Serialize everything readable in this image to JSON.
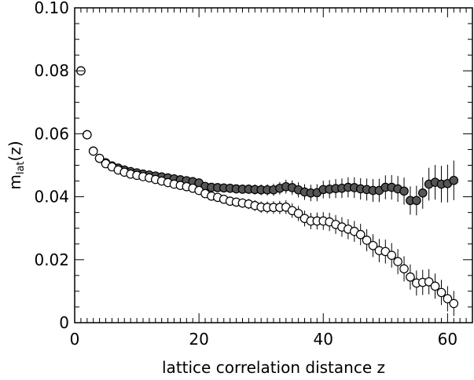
{
  "chart_data": {
    "type": "scatter",
    "xlabel": "lattice correlation distance z",
    "ylabel": {
      "main": "m",
      "sub": "lat",
      "suffix": "(z)"
    },
    "xlim": [
      0,
      64
    ],
    "ylim": [
      0,
      0.1
    ],
    "xticks": [
      0,
      20,
      40,
      60
    ],
    "xtick_labels": [
      "0",
      "20",
      "40",
      "60"
    ],
    "yticks": [
      0,
      0.02,
      0.04,
      0.06,
      0.08,
      0.1
    ],
    "ytick_labels": [
      "0",
      "0.02",
      "0.04",
      "0.06",
      "0.08",
      "0.10"
    ],
    "grid": false,
    "colors": {
      "filled": "#555555",
      "open": "#ffffff",
      "stroke": "#000000"
    },
    "series": [
      {
        "marker": "filled-circle",
        "points": [
          [
            1,
            0.08,
            0.0003
          ],
          [
            2,
            0.0597,
            0.0003
          ],
          [
            3,
            0.0545,
            0.0003
          ],
          [
            4,
            0.0522,
            0.0004
          ],
          [
            5,
            0.0508,
            0.0004
          ],
          [
            6,
            0.0498,
            0.0004
          ],
          [
            7,
            0.0491,
            0.0004
          ],
          [
            8,
            0.0485,
            0.0004
          ],
          [
            9,
            0.048,
            0.0005
          ],
          [
            10,
            0.0476,
            0.0005
          ],
          [
            11,
            0.0472,
            0.0005
          ],
          [
            12,
            0.0469,
            0.0005
          ],
          [
            13,
            0.0466,
            0.0005
          ],
          [
            14,
            0.0463,
            0.0005
          ],
          [
            15,
            0.046,
            0.0006
          ],
          [
            16,
            0.0457,
            0.0006
          ],
          [
            17,
            0.0454,
            0.0006
          ],
          [
            18,
            0.0451,
            0.0006
          ],
          [
            19,
            0.0448,
            0.0007
          ],
          [
            20,
            0.0444,
            0.0007
          ],
          [
            21,
            0.0433,
            0.0008
          ],
          [
            22,
            0.043,
            0.0009
          ],
          [
            23,
            0.0429,
            0.001
          ],
          [
            24,
            0.0428,
            0.0011
          ],
          [
            25,
            0.0427,
            0.0012
          ],
          [
            26,
            0.0425,
            0.0013
          ],
          [
            27,
            0.0424,
            0.0014
          ],
          [
            28,
            0.0424,
            0.0015
          ],
          [
            29,
            0.0423,
            0.0016
          ],
          [
            30,
            0.0422,
            0.0017
          ],
          [
            31,
            0.0422,
            0.0018
          ],
          [
            32,
            0.0422,
            0.0019
          ],
          [
            33,
            0.0427,
            0.002
          ],
          [
            34,
            0.0432,
            0.0022
          ],
          [
            35,
            0.0429,
            0.0023
          ],
          [
            36,
            0.0422,
            0.0024
          ],
          [
            37,
            0.0415,
            0.0025
          ],
          [
            38,
            0.0412,
            0.0026
          ],
          [
            39,
            0.0413,
            0.0027
          ],
          [
            40,
            0.0423,
            0.0028
          ],
          [
            41,
            0.0424,
            0.0029
          ],
          [
            42,
            0.0426,
            0.003
          ],
          [
            43,
            0.0427,
            0.0031
          ],
          [
            44,
            0.043,
            0.0032
          ],
          [
            45,
            0.0429,
            0.0033
          ],
          [
            46,
            0.0425,
            0.0034
          ],
          [
            47,
            0.0423,
            0.0035
          ],
          [
            48,
            0.042,
            0.0036
          ],
          [
            49,
            0.042,
            0.0037
          ],
          [
            50,
            0.043,
            0.0038
          ],
          [
            51,
            0.043,
            0.0039
          ],
          [
            52,
            0.0425,
            0.0041
          ],
          [
            53,
            0.0418,
            0.0043
          ],
          [
            54,
            0.0388,
            0.0045
          ],
          [
            55,
            0.0388,
            0.0047
          ],
          [
            56,
            0.0412,
            0.005
          ],
          [
            57,
            0.044,
            0.0052
          ],
          [
            58,
            0.0446,
            0.0055
          ],
          [
            59,
            0.044,
            0.0058
          ],
          [
            60,
            0.0442,
            0.006
          ],
          [
            61,
            0.0452,
            0.0063
          ]
        ]
      },
      {
        "marker": "open-circle",
        "points": [
          [
            1,
            0.08,
            0.0003
          ],
          [
            2,
            0.0597,
            0.0003
          ],
          [
            3,
            0.0545,
            0.0003
          ],
          [
            4,
            0.0522,
            0.0004
          ],
          [
            5,
            0.0505,
            0.0004
          ],
          [
            6,
            0.0495,
            0.0004
          ],
          [
            7,
            0.0485,
            0.0004
          ],
          [
            8,
            0.0478,
            0.0004
          ],
          [
            9,
            0.0472,
            0.0005
          ],
          [
            10,
            0.0468,
            0.0005
          ],
          [
            11,
            0.0464,
            0.0005
          ],
          [
            12,
            0.046,
            0.0005
          ],
          [
            13,
            0.0455,
            0.0005
          ],
          [
            14,
            0.045,
            0.0005
          ],
          [
            15,
            0.0445,
            0.0006
          ],
          [
            16,
            0.044,
            0.0006
          ],
          [
            17,
            0.0436,
            0.0006
          ],
          [
            18,
            0.0432,
            0.0007
          ],
          [
            19,
            0.0427,
            0.0007
          ],
          [
            20,
            0.042,
            0.0008
          ],
          [
            21,
            0.041,
            0.0009
          ],
          [
            22,
            0.0402,
            0.001
          ],
          [
            23,
            0.0398,
            0.0011
          ],
          [
            24,
            0.0392,
            0.0012
          ],
          [
            25,
            0.0386,
            0.0013
          ],
          [
            26,
            0.0383,
            0.0014
          ],
          [
            27,
            0.038,
            0.0015
          ],
          [
            28,
            0.0377,
            0.0016
          ],
          [
            29,
            0.0372,
            0.0017
          ],
          [
            30,
            0.0367,
            0.0018
          ],
          [
            31,
            0.0366,
            0.0019
          ],
          [
            32,
            0.0366,
            0.002
          ],
          [
            33,
            0.0366,
            0.0021
          ],
          [
            34,
            0.0367,
            0.0022
          ],
          [
            35,
            0.0356,
            0.0023
          ],
          [
            36,
            0.0347,
            0.0024
          ],
          [
            37,
            0.0331,
            0.0025
          ],
          [
            38,
            0.0323,
            0.0026
          ],
          [
            39,
            0.0323,
            0.0027
          ],
          [
            40,
            0.0323,
            0.0028
          ],
          [
            41,
            0.032,
            0.0029
          ],
          [
            42,
            0.0312,
            0.003
          ],
          [
            43,
            0.0304,
            0.0031
          ],
          [
            44,
            0.0297,
            0.0032
          ],
          [
            45,
            0.029,
            0.0033
          ],
          [
            46,
            0.028,
            0.0034
          ],
          [
            47,
            0.0262,
            0.0035
          ],
          [
            48,
            0.0245,
            0.0036
          ],
          [
            49,
            0.0229,
            0.0037
          ],
          [
            50,
            0.0226,
            0.0038
          ],
          [
            51,
            0.0214,
            0.0039
          ],
          [
            52,
            0.0194,
            0.004
          ],
          [
            53,
            0.0171,
            0.004
          ],
          [
            54,
            0.0145,
            0.004
          ],
          [
            55,
            0.0126,
            0.004
          ],
          [
            56,
            0.0128,
            0.004
          ],
          [
            57,
            0.013,
            0.004
          ],
          [
            58,
            0.0116,
            0.004
          ],
          [
            59,
            0.0096,
            0.004
          ],
          [
            60,
            0.0076,
            0.004
          ],
          [
            61,
            0.0061,
            0.004
          ]
        ]
      }
    ]
  }
}
